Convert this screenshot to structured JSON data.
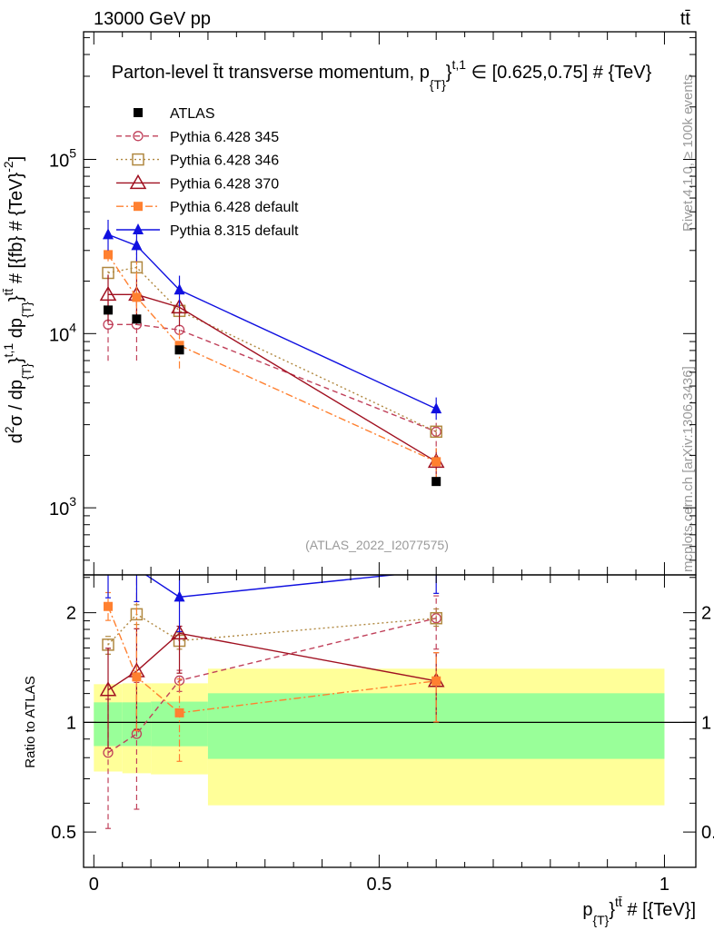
{
  "header": {
    "energy": "13000 GeV pp",
    "process": "tt̄"
  },
  "side": {
    "rivet": "Rivet 4.1.0, ≥ 100k events",
    "mcplots": "mcplots.cern.ch [arXiv:1306.3436]"
  },
  "watermark": "(ATLAS_2022_I2077575)",
  "chart_data": {
    "type": "line",
    "title_parts": {
      "a": "Parton-level t̄t transverse momentum, p",
      "sub": "{T}",
      "b": "}",
      "sup": "t,1",
      "c": " ∈ [0.625,0.75] # {TeV}"
    },
    "ylabel_parts": {
      "a": "d",
      "sup1": "2",
      "b": "σ / dp",
      "sub1": "{T}",
      "c": "}",
      "sup2": "t,1",
      "d": " dp",
      "sub2": "{T}",
      "e": "}",
      "sup3": "tt̄",
      "f": " # [{fb} # {TeV}",
      "sup4": "-2",
      "g": "]"
    },
    "xlabel_parts": {
      "a": "p",
      "sub": "{T}",
      "b": "}",
      "sup": "tt̄",
      "c": " # [{TeV}]"
    },
    "ratio_ylabel": "Ratio to ATLAS",
    "yscale": "log",
    "ylim": [
      412,
      540000
    ],
    "ratio_ylim": [
      0.4,
      2.54
    ],
    "xlim": [
      -0.018,
      1.055
    ],
    "x_ticks": [
      {
        "v": 0,
        "label": "0"
      },
      {
        "v": 0.5,
        "label": "0.5"
      },
      {
        "v": 1,
        "label": "1"
      }
    ],
    "y_ticks": [
      {
        "v": 1000,
        "base": "10",
        "exp": "3"
      },
      {
        "v": 10000,
        "base": "10",
        "exp": "4"
      },
      {
        "v": 100000,
        "base": "10",
        "exp": "5"
      }
    ],
    "ratio_ticks": [
      {
        "v": 0.5,
        "label": "0.5"
      },
      {
        "v": 1,
        "label": "1"
      },
      {
        "v": 2,
        "label": "2"
      }
    ],
    "bins": [
      [
        0,
        0.05
      ],
      [
        0.05,
        0.1
      ],
      [
        0.1,
        0.2
      ],
      [
        0.2,
        1.0
      ]
    ],
    "x": [
      0.025,
      0.075,
      0.15,
      0.6
    ],
    "reference": {
      "name": "ATLAS",
      "color": "#000000",
      "values": [
        13650,
        12120,
        8060,
        1416
      ],
      "stat_band": [
        [
          0.861,
          1.135
        ],
        [
          0.861,
          1.135
        ],
        [
          0.86,
          1.14
        ],
        [
          0.794,
          1.202
        ]
      ],
      "total_band": [
        [
          0.733,
          1.273
        ],
        [
          0.725,
          1.28
        ],
        [
          0.72,
          1.28
        ],
        [
          0.592,
          1.404
        ]
      ],
      "stat_color": "#99ff99",
      "total_color": "#ffff99"
    },
    "legend_position": "top-left",
    "series": [
      {
        "name": "Pythia 6.428 345",
        "color": "#c0405a",
        "marker": "open-circle",
        "dash": "6,4",
        "values": [
          11270,
          11270,
          10500,
          2735
        ],
        "errors": [
          [
            6980,
            15800
          ],
          [
            7000,
            15600
          ],
          [
            9800,
            11200
          ],
          [
            2250,
            3150
          ]
        ]
      },
      {
        "name": "Pythia 6.428 346",
        "color": "#b08840",
        "marker": "open-square",
        "dash": "2,3",
        "values": [
          22300,
          24000,
          13500,
          2735
        ],
        "errors": [
          [
            21000,
            23500
          ],
          [
            22500,
            25500
          ],
          [
            12800,
            14200
          ],
          [
            2600,
            2900
          ]
        ]
      },
      {
        "name": "Pythia 6.428 370",
        "color": "#a01020",
        "marker": "open-triangle",
        "dash": "",
        "values": [
          16750,
          16750,
          14150,
          1840
        ],
        "errors": [
          [
            11600,
            21800
          ],
          [
            11600,
            21900
          ],
          [
            11000,
            14800
          ],
          [
            1420,
            2200
          ]
        ]
      },
      {
        "name": "Pythia 6.428 default",
        "color": "#ff8030",
        "marker": "filled-square",
        "dash": "8,3,2,3",
        "values": [
          28400,
          16150,
          8560,
          1840
        ],
        "errors": [
          [
            26000,
            31000
          ],
          [
            11500,
            35000
          ],
          [
            6300,
            10600
          ],
          [
            1420,
            2200
          ]
        ]
      },
      {
        "name": "Pythia 8.315 default",
        "color": "#1010e0",
        "marker": "filled-triangle",
        "dash": "",
        "values": [
          37000,
          32000,
          17800,
          3700
        ],
        "errors": [
          [
            30000,
            45000
          ],
          [
            26000,
            38000
          ],
          [
            14300,
            21500
          ],
          [
            3200,
            4300
          ]
        ]
      }
    ]
  }
}
